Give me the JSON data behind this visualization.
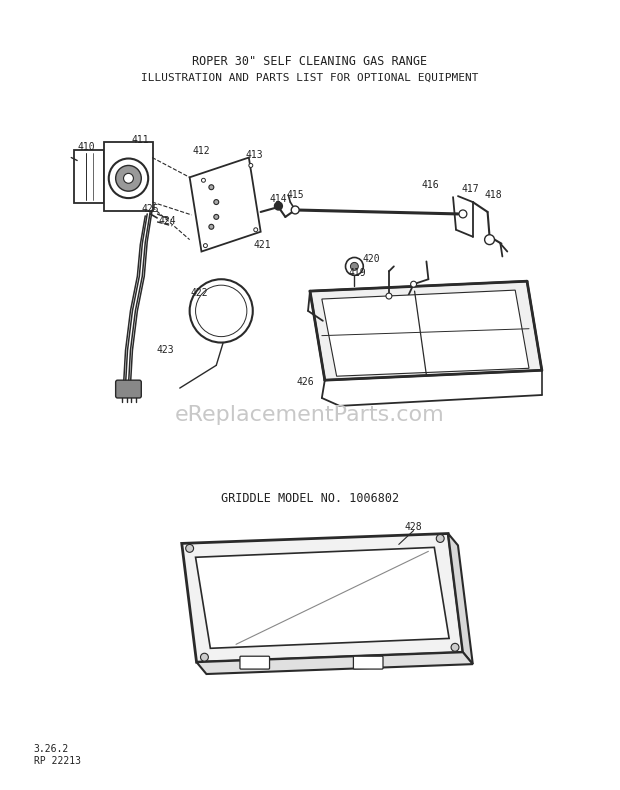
{
  "title1": "ROPER 30\" SELF CLEANING GAS RANGE",
  "title2": "ILLUSTRATION AND PARTS LIST FOR OPTIONAL EQUIPMENT",
  "griddle_label": "GRIDDLE MODEL NO. 1006802",
  "watermark": "eReplacementParts.com",
  "footer1": "3.26.2",
  "footer2": "RP 22213",
  "bg_color": "#ffffff",
  "text_color": "#222222",
  "diagram_color": "#2a2a2a",
  "watermark_color": "#c8c8c8"
}
